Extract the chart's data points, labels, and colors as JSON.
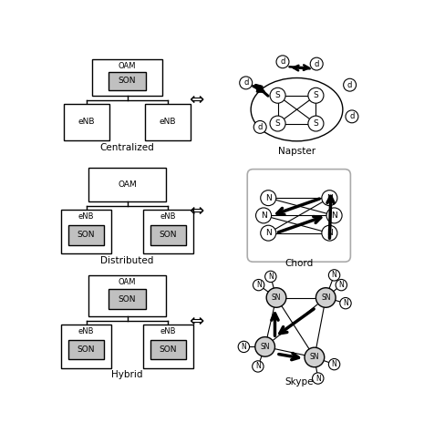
{
  "background_color": "#ffffff",
  "row1_label": "Centralized",
  "row2_label": "Distributed",
  "row3_label": "Hybrid",
  "napster_label": "Napster",
  "chord_label": "Chord",
  "skype_label": "Skype",
  "double_arrow": "⇔"
}
